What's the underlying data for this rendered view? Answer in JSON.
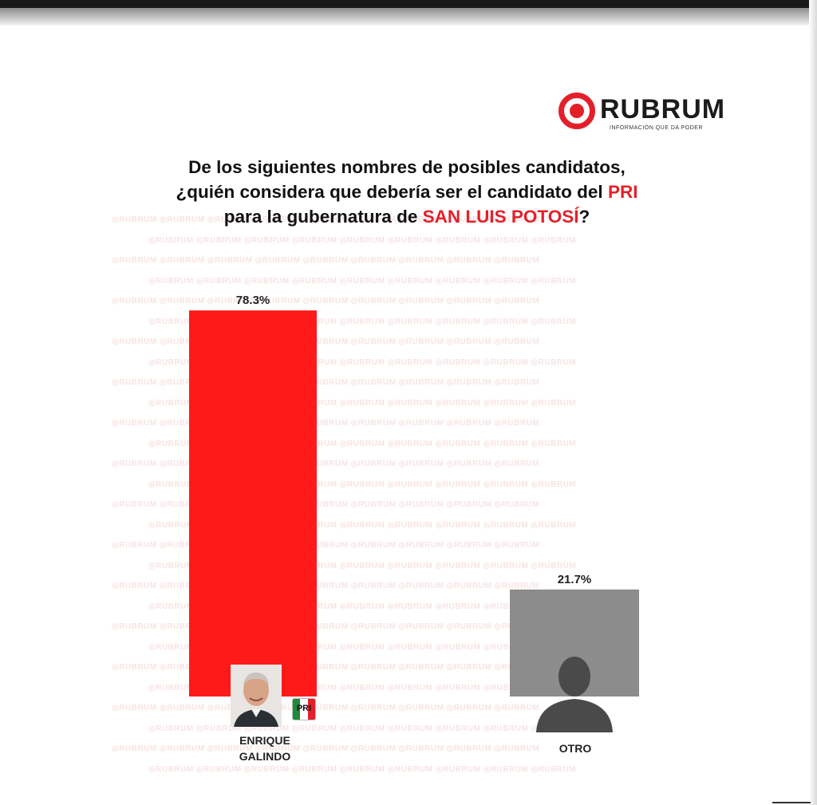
{
  "brand": {
    "name": "RUBRUM",
    "tagline": "INFORMACIÓN QUE DA PODER",
    "color": "#e3202a",
    "watermark_text": "RUBRUM"
  },
  "question": {
    "line1": "De los siguientes nombres de posibles candidatos,",
    "line2_prefix": "¿quién considera que debería ser el candidato del ",
    "line2_highlight": "PRI",
    "line3_prefix": "para la gubernatura de ",
    "line3_highlight": "SAN LUIS POTOSÍ",
    "line3_suffix": "?"
  },
  "chart_data": {
    "type": "bar",
    "categories": [
      "ENRIQUE GALINDO",
      "OTRO"
    ],
    "category_lines": [
      [
        "ENRIQUE",
        "GALINDO"
      ],
      [
        "OTRO"
      ]
    ],
    "values": [
      78.3,
      21.7
    ],
    "value_labels": [
      "78.3%",
      "21.7%"
    ],
    "colors": [
      "#ff1a1a",
      "#8c8c8c"
    ],
    "ylim": [
      0,
      100
    ],
    "grid": false,
    "title": "",
    "xlabel": "",
    "ylabel": ""
  },
  "icons": {
    "candidate_photo": "candidate-photo-icon",
    "party_logo": "pri-logo-icon",
    "party_logo_text": "PRI",
    "generic_person": "person-silhouette-icon"
  }
}
